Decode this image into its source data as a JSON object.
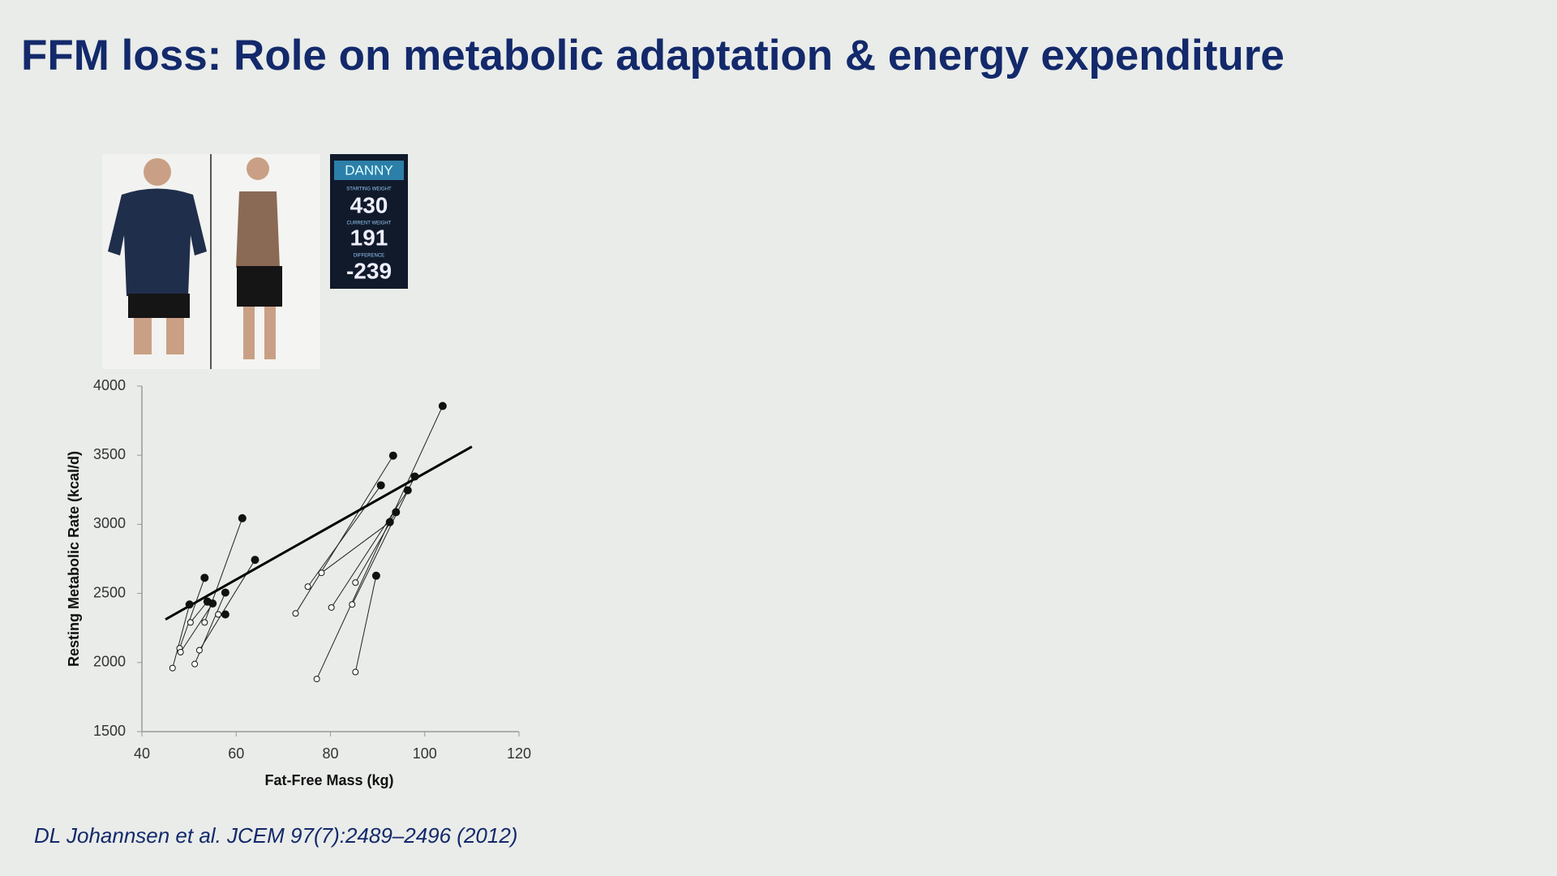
{
  "slide": {
    "title": "FFM loss: Role on metabolic adaptation & energy expenditure",
    "citation": "DL Johannsen et al. JCEM 97(7):2489–2496 (2012)"
  },
  "photo": {
    "scoreboard": {
      "name": "DANNY",
      "label_start": "STARTING WEIGHT",
      "start": "430",
      "label_current": "CURRENT WEIGHT",
      "current": "191",
      "label_difference": "DIFFERENCE",
      "difference": "-239"
    }
  },
  "chart_data": {
    "type": "scatter",
    "x_label": "Fat-Free Mass (kg)",
    "y_label": "Resting Metabolic Rate (kcal/d)",
    "xlim": [
      40,
      120
    ],
    "xticks": [
      40,
      60,
      80,
      100,
      120
    ],
    "ylim": [
      1500,
      4000
    ],
    "yticks": [
      1500,
      2000,
      2500,
      3000,
      3500,
      4000
    ],
    "grid": false,
    "series": [
      {
        "color": "#111111",
        "marker": "filled",
        "x": [
          50.1,
          53.3,
          55.0,
          53.9,
          57.7,
          64.0,
          61.3,
          57.7,
          93.3,
          90.7,
          92.6,
          96.4,
          97.9,
          93.9,
          103.8,
          89.7
        ],
        "values": [
          2420,
          2613,
          2427,
          2441,
          2506,
          2743,
          3044,
          2348,
          3497,
          3282,
          3016,
          3246,
          3346,
          3088,
          3856,
          2628
        ]
      },
      {
        "color": "#111111",
        "marker": "open",
        "x": [
          46.5,
          48.0,
          48.2,
          50.3,
          51.2,
          52.2,
          53.3,
          56.2,
          72.6,
          75.2,
          78.1,
          80.2,
          84.6,
          85.3,
          77.1,
          85.3
        ],
        "values": [
          1960,
          2103,
          2075,
          2290,
          1989,
          2089,
          2290,
          2348,
          2355,
          2549,
          2649,
          2398,
          2420,
          2578,
          1881,
          1931
        ]
      }
    ],
    "trend": {
      "color": "#000000",
      "x": [
        45,
        110
      ],
      "values": [
        2312,
        3562
      ]
    }
  }
}
